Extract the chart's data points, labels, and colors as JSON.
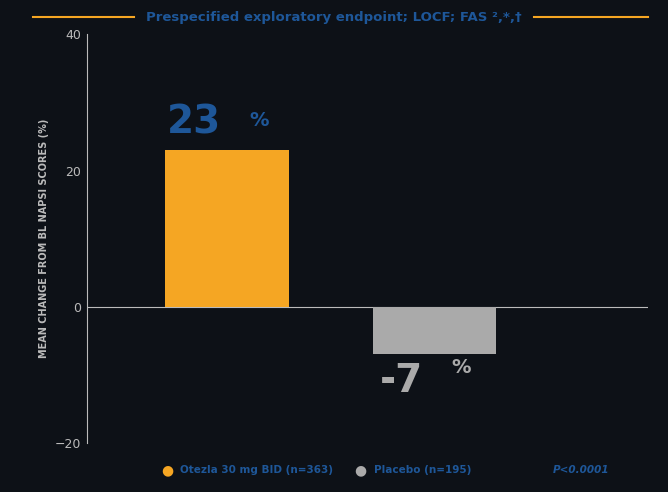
{
  "categories": [
    "Otezla 30 mg BID",
    "Placebo"
  ],
  "values": [
    23,
    -7
  ],
  "bar_colors": [
    "#F5A623",
    "#AAAAAA"
  ],
  "bar_width": 0.22,
  "bar_positions": [
    0.25,
    0.62
  ],
  "ylim": [
    -20,
    40
  ],
  "yticks": [
    -20,
    0,
    20,
    40
  ],
  "ylabel": "MEAN CHANGE FROM BL NAPSI SCORES (%)",
  "title_text": "Prespecified exploratory endpoint; LOCF; FAS ²,*,†",
  "title_color": "#1E5799",
  "title_line_color": "#F5A623",
  "bg_color": "#0D1117",
  "axis_color": "#BBBBBB",
  "label_23_color": "#1E5799",
  "label_neg7_color": "#AAAAAA",
  "legend_otezla_label": "Otezla 30 mg BID (n=363)",
  "legend_placebo_label": "Placebo (n=195)",
  "pvalue_text": "P<0.0001",
  "pvalue_color": "#1E5799",
  "otezla_color": "#F5A623",
  "placebo_color": "#AAAAAA",
  "legend_text_color": "#1E5799",
  "xlim": [
    0.0,
    1.0
  ]
}
